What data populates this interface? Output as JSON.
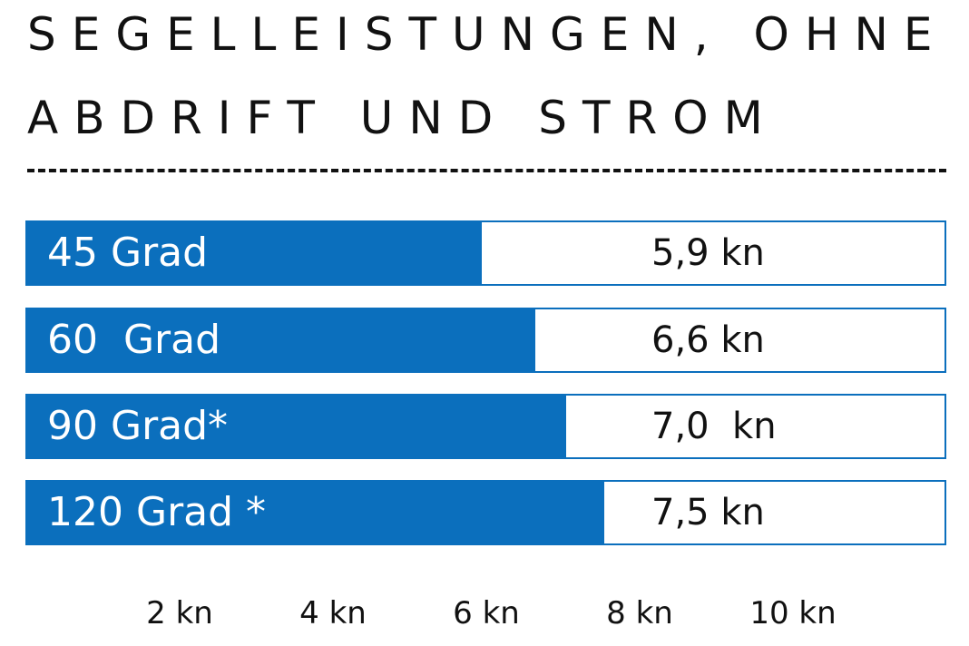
{
  "colors": {
    "bar": "#0b6fbd",
    "text": "#111111",
    "label_text": "#ffffff"
  },
  "chart_data": {
    "type": "bar",
    "orientation": "horizontal",
    "title_lines": [
      "SEGELLEISTUNGEN, OHNE",
      "ABDRIFT UND STROM"
    ],
    "categories": [
      "45 Grad",
      "60  Grad",
      "90 Grad*",
      "120 Grad *"
    ],
    "values": [
      5.9,
      6.6,
      7.0,
      7.5
    ],
    "value_labels": [
      "5,9 kn",
      "6,6 kn",
      "7,0  kn",
      "7,5 kn"
    ],
    "x_ticks": [
      "2 kn",
      "4 kn",
      "6 kn",
      "8 kn",
      "10 kn"
    ],
    "x_tick_values": [
      2,
      4,
      6,
      8,
      10
    ],
    "xlim": [
      0,
      12
    ],
    "grid": false,
    "legend": "none"
  }
}
